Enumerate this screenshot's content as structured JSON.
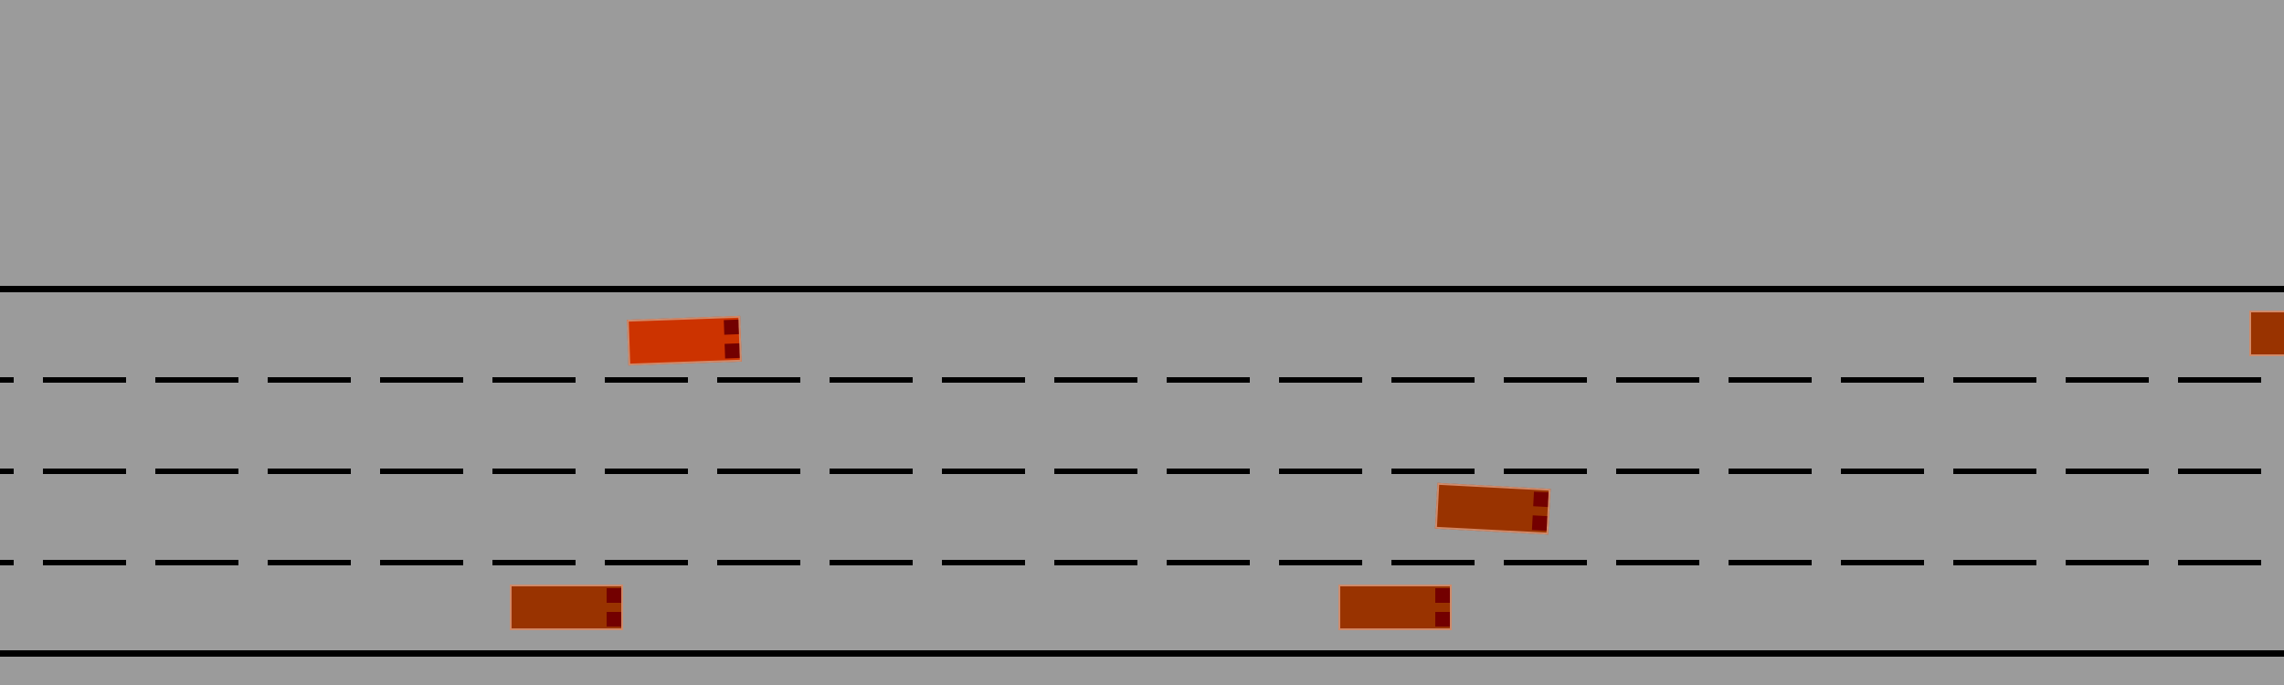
{
  "scene": {
    "type": "highway-simulation",
    "lane_count": 4,
    "background_color": "#9b9b9b",
    "line_color": "#000000"
  },
  "vehicles": [
    {
      "id": "ego-vehicle",
      "lane": 1,
      "color": "#cc3300",
      "light_color": "#730000",
      "heading_deg": -2,
      "role": "controlled"
    },
    {
      "id": "vehicle-1",
      "lane": 1,
      "color": "#993300",
      "light_color": "#730000",
      "heading_deg": 0,
      "role": "other"
    },
    {
      "id": "vehicle-2",
      "lane": 3,
      "color": "#993300",
      "light_color": "#730000",
      "heading_deg": 3,
      "role": "other"
    },
    {
      "id": "vehicle-3",
      "lane": 4,
      "color": "#993300",
      "light_color": "#730000",
      "heading_deg": 0,
      "role": "other"
    },
    {
      "id": "vehicle-4",
      "lane": 4,
      "color": "#993300",
      "light_color": "#730000",
      "heading_deg": 0,
      "role": "other"
    }
  ]
}
